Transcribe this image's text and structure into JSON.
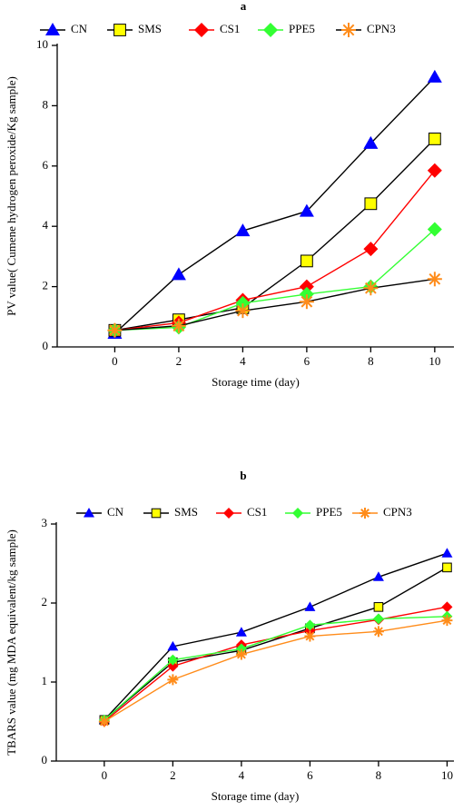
{
  "chart_data": [
    {
      "type": "line",
      "title": "a",
      "x_label": "Storage time (day)",
      "y_label": "PV value( Cumene hydrogen peroxide/Kg sample)",
      "x": [
        0,
        2,
        4,
        6,
        8,
        10
      ],
      "xlim": [
        -1.8,
        10.6
      ],
      "xticks": [
        0,
        2,
        4,
        6,
        8,
        10
      ],
      "ylim": [
        0,
        10
      ],
      "yticks": [
        0,
        2,
        4,
        6,
        8,
        10
      ],
      "series": [
        {
          "name": "CN",
          "color": "#0000ff",
          "line_color": "#000000",
          "marker": "triangle",
          "values": [
            0.45,
            2.4,
            3.85,
            4.5,
            6.75,
            8.95
          ]
        },
        {
          "name": "SMS",
          "color": "#ffff00",
          "line_color": "#000000",
          "marker": "square",
          "values": [
            0.55,
            0.9,
            1.3,
            2.85,
            4.75,
            6.9
          ]
        },
        {
          "name": "CS1",
          "color": "#ff0000",
          "line_color": "#ff0000",
          "marker": "diamond",
          "values": [
            0.55,
            0.8,
            1.55,
            2.0,
            3.25,
            5.85
          ]
        },
        {
          "name": "PPE5",
          "color": "#33ff33",
          "line_color": "#33ff33",
          "marker": "diamond",
          "values": [
            0.55,
            0.65,
            1.45,
            1.75,
            2.0,
            3.9
          ]
        },
        {
          "name": "CPN3",
          "color": "#ff8c1a",
          "line_color": "#000000",
          "marker": "asterisk",
          "values": [
            0.55,
            0.7,
            1.2,
            1.5,
            1.95,
            2.25
          ]
        }
      ]
    },
    {
      "type": "line",
      "title": "b",
      "x_label": "Storage time (day)",
      "y_label": "TBARS value (mg MDA equivalent/kg sample)",
      "x": [
        0,
        2,
        4,
        6,
        8,
        10
      ],
      "xlim": [
        -1.4,
        10.2
      ],
      "xticks": [
        0,
        2,
        4,
        6,
        8,
        10
      ],
      "ylim": [
        0,
        3
      ],
      "yticks": [
        0,
        1,
        2,
        3
      ],
      "series": [
        {
          "name": "CN",
          "color": "#0000ff",
          "line_color": "#000000",
          "marker": "triangle",
          "values": [
            0.52,
            1.45,
            1.63,
            1.95,
            2.33,
            2.63
          ]
        },
        {
          "name": "SMS",
          "color": "#ffff00",
          "line_color": "#000000",
          "marker": "square",
          "values": [
            0.52,
            1.25,
            1.4,
            1.68,
            1.95,
            2.45
          ]
        },
        {
          "name": "CS1",
          "color": "#ff0000",
          "line_color": "#ff0000",
          "marker": "diamond",
          "values": [
            0.5,
            1.2,
            1.47,
            1.65,
            1.79,
            1.95
          ]
        },
        {
          "name": "PPE5",
          "color": "#33ff33",
          "line_color": "#33ff33",
          "marker": "diamond",
          "values": [
            0.52,
            1.28,
            1.42,
            1.72,
            1.8,
            1.83
          ]
        },
        {
          "name": "CPN3",
          "color": "#ff8c1a",
          "line_color": "#ff8c1a",
          "marker": "asterisk",
          "values": [
            0.5,
            1.03,
            1.35,
            1.58,
            1.64,
            1.78
          ]
        }
      ]
    }
  ]
}
